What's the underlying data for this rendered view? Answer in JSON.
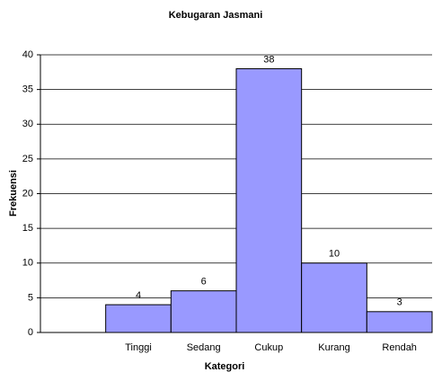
{
  "chart_data": {
    "type": "bar",
    "title": "Kebugaran Jasmani",
    "x_label": "Kategori",
    "y_label": "Frekuensi",
    "categories": [
      null,
      "Tinggi",
      "Sedang",
      "Cukup",
      "Kurang",
      "Rendah"
    ],
    "values": [
      null,
      4,
      6,
      38,
      10,
      3
    ],
    "color": "#9999ff",
    "ylim": [
      0,
      40
    ],
    "yticks": [
      0,
      5,
      10,
      15,
      20,
      25,
      30,
      35,
      40
    ],
    "grid": true
  }
}
